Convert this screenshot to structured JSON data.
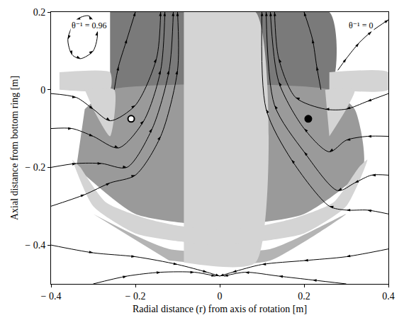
{
  "chart_data": {
    "type": "streamline",
    "x_label": "Radial distance (r) from axis of rotation [m]",
    "y_label": "Axial distance from bottom ring [m]",
    "xlim": [
      -0.4,
      0.4
    ],
    "ylim": [
      -0.5,
      0.2
    ],
    "xticks": [
      {
        "value": -0.4,
        "label": "− 0.4"
      },
      {
        "value": -0.2,
        "label": "− 0.2"
      },
      0,
      0.2,
      0.4
    ],
    "yticks": [
      {
        "value": -0.4,
        "label": "− 0.4"
      },
      {
        "value": -0.2,
        "label": "− 0.2"
      },
      0,
      0.2
    ],
    "grid": false,
    "color": "#000000",
    "marker": "arrow",
    "annotations": [
      {
        "x": -0.31,
        "y": 0.165,
        "text": "θ⁻¹ = 0.96"
      },
      {
        "x": 0.335,
        "y": 0.165,
        "text": "θ⁻¹ = 0"
      }
    ],
    "regions": [
      {
        "color": "#7a7a7a",
        "x": [
          -0.26,
          0.26,
          0.26,
          -0.26
        ],
        "y": [
          0.2,
          0.2,
          0.0,
          0.0
        ]
      },
      {
        "color": "#9a9a9a",
        "x": [
          -0.32,
          -0.26,
          0.26,
          0.32,
          0.34,
          0.2,
          0.0,
          -0.2,
          -0.34
        ],
        "y": [
          -0.05,
          0.0,
          0.0,
          -0.05,
          -0.2,
          -0.32,
          -0.35,
          -0.32,
          -0.2
        ]
      },
      {
        "color": "#b4b4b4",
        "x": [
          -0.3,
          -0.12,
          0.12,
          0.3,
          0.12,
          0.0,
          -0.12
        ],
        "y": [
          -0.32,
          -0.41,
          -0.41,
          -0.32,
          -0.44,
          -0.45,
          -0.44
        ]
      },
      {
        "color": "#d4d4d4",
        "x": [
          -0.085,
          0.085,
          0.085,
          -0.085
        ],
        "y": [
          0.2,
          0.2,
          -0.445,
          -0.445
        ]
      },
      {
        "color": "#d4d4d4",
        "x": [
          -0.38,
          -0.26,
          -0.26,
          -0.38
        ],
        "y": [
          0.045,
          0.045,
          0.0,
          0.0
        ]
      },
      {
        "color": "#d4d4d4",
        "x": [
          0.26,
          0.4,
          0.4,
          0.26
        ],
        "y": [
          0.045,
          0.045,
          0.0,
          0.0
        ]
      },
      {
        "color": "#d4d4d4",
        "x": [
          -0.32,
          -0.25,
          -0.26,
          -0.3
        ],
        "y": [
          0.0,
          0.0,
          -0.12,
          -0.05
        ]
      },
      {
        "color": "#d4d4d4",
        "x": [
          0.25,
          0.32,
          0.3,
          0.26
        ],
        "y": [
          0.0,
          0.0,
          -0.05,
          -0.12
        ]
      },
      {
        "color": "#d4d4d4",
        "x": [
          -0.35,
          -0.3,
          -0.2,
          -0.1,
          0.0,
          0.1,
          0.2,
          0.3,
          0.35,
          0.33,
          0.27,
          0.18,
          0.1,
          0.0,
          -0.1,
          -0.18,
          -0.27,
          -0.33
        ],
        "y": [
          -0.18,
          -0.3,
          -0.37,
          -0.39,
          -0.4,
          -0.39,
          -0.37,
          -0.3,
          -0.18,
          -0.2,
          -0.29,
          -0.33,
          -0.35,
          -0.36,
          -0.35,
          -0.33,
          -0.29,
          -0.2
        ]
      }
    ],
    "streamlines": [
      {
        "x": [
          -0.4,
          -0.34,
          -0.3,
          -0.26,
          -0.2,
          -0.15,
          -0.14
        ],
        "y": [
          -0.01,
          -0.02,
          -0.05,
          -0.08,
          -0.04,
          0.08,
          0.2
        ]
      },
      {
        "x": [
          -0.4,
          -0.35,
          -0.3,
          -0.24,
          -0.18,
          -0.14,
          -0.13
        ],
        "y": [
          -0.1,
          -0.1,
          -0.12,
          -0.15,
          -0.08,
          0.05,
          0.2
        ]
      },
      {
        "x": [
          -0.4,
          -0.34,
          -0.28,
          -0.22,
          -0.16,
          -0.12,
          -0.11
        ],
        "y": [
          -0.2,
          -0.19,
          -0.19,
          -0.2,
          -0.1,
          0.05,
          0.2
        ]
      },
      {
        "x": [
          -0.4,
          -0.32,
          -0.26,
          -0.2,
          -0.14,
          -0.1,
          -0.1
        ],
        "y": [
          -0.3,
          -0.27,
          -0.24,
          -0.22,
          -0.12,
          0.05,
          0.2
        ]
      },
      {
        "x": [
          -0.4,
          -0.3,
          -0.2,
          -0.1,
          -0.03,
          0.0
        ],
        "y": [
          -0.4,
          -0.42,
          -0.43,
          -0.45,
          -0.47,
          -0.48
        ]
      },
      {
        "x": [
          -0.3,
          -0.22,
          -0.14,
          -0.06,
          -0.01
        ],
        "y": [
          -0.5,
          -0.48,
          -0.47,
          -0.47,
          -0.48
        ]
      },
      {
        "x": [
          -0.25,
          -0.24,
          -0.22,
          -0.2
        ],
        "y": [
          0.0,
          0.06,
          0.13,
          0.2
        ]
      },
      {
        "x": [
          -0.33,
          -0.3,
          -0.29,
          -0.31,
          -0.34,
          -0.36,
          -0.35,
          -0.33
        ],
        "y": [
          0.08,
          0.1,
          0.15,
          0.19,
          0.18,
          0.13,
          0.09,
          0.08
        ]
      },
      {
        "x": [
          0.4,
          0.35,
          0.3,
          0.25,
          0.18,
          0.14,
          0.13
        ],
        "y": [
          -0.01,
          -0.03,
          -0.05,
          -0.05,
          -0.02,
          0.08,
          0.2
        ]
      },
      {
        "x": [
          0.4,
          0.35,
          0.3,
          0.26,
          0.2,
          0.14,
          0.12
        ],
        "y": [
          -0.12,
          -0.12,
          -0.13,
          -0.16,
          -0.1,
          0.02,
          0.2
        ]
      },
      {
        "x": [
          0.4,
          0.36,
          0.32,
          0.28,
          0.2,
          0.13,
          0.11
        ],
        "y": [
          -0.22,
          -0.22,
          -0.24,
          -0.26,
          -0.16,
          -0.04,
          0.2
        ]
      },
      {
        "x": [
          0.4,
          0.35,
          0.3,
          0.26,
          0.17,
          0.11,
          0.1
        ],
        "y": [
          -0.32,
          -0.31,
          -0.31,
          -0.3,
          -0.18,
          -0.05,
          0.2
        ]
      },
      {
        "x": [
          0.4,
          0.3,
          0.2,
          0.1,
          0.03,
          0.0
        ],
        "y": [
          -0.41,
          -0.43,
          -0.44,
          -0.45,
          -0.47,
          -0.48
        ]
      },
      {
        "x": [
          0.3,
          0.22,
          0.14,
          0.06,
          0.01
        ],
        "y": [
          -0.5,
          -0.49,
          -0.48,
          -0.47,
          -0.48
        ]
      },
      {
        "x": [
          0.24,
          0.23,
          0.22,
          0.2
        ],
        "y": [
          0.0,
          0.06,
          0.13,
          0.2
        ]
      },
      {
        "x": [
          0.28,
          0.3,
          0.33,
          0.36,
          0.4
        ],
        "y": [
          0.05,
          0.08,
          0.12,
          0.15,
          0.18
        ]
      }
    ],
    "points": [
      {
        "x": -0.21,
        "y": -0.075,
        "color": "#ffffff"
      },
      {
        "x": 0.21,
        "y": -0.075,
        "color": "#000000"
      }
    ]
  }
}
